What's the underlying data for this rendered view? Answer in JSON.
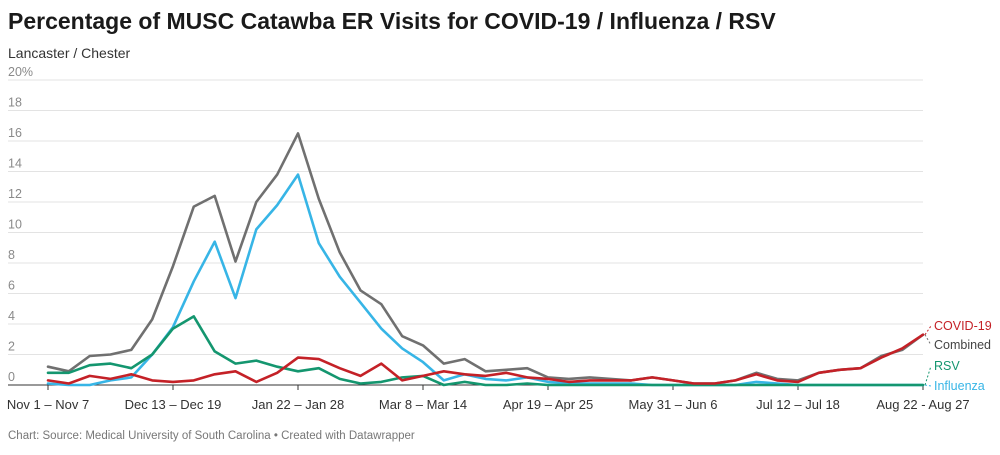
{
  "header": {
    "title": "Percentage of MUSC Catawba ER Visits for COVID-19 / Influenza / RSV",
    "subtitle": "Lancaster / Chester"
  },
  "footer": {
    "text": "Chart: Source: Medical University of South Carolina • Created with Datawrapper"
  },
  "chart_data": {
    "type": "line",
    "title": "Percentage of MUSC Catawba ER Visits for COVID-19 / Influenza / RSV",
    "subtitle": "Lancaster / Chester",
    "xlabel": "",
    "ylabel": "",
    "ylim": [
      0,
      20
    ],
    "yticks": [
      "0",
      "2",
      "4",
      "6",
      "8",
      "10",
      "12",
      "14",
      "16",
      "18",
      "20%"
    ],
    "x_tick_labels": [
      {
        "index": 0,
        "label": "Nov 1 – Nov 7"
      },
      {
        "index": 6,
        "label": "Dec 13 – Dec 19"
      },
      {
        "index": 12,
        "label": "Jan 22 – Jan 28"
      },
      {
        "index": 18,
        "label": "Mar 8 – Mar 14"
      },
      {
        "index": 24,
        "label": "Apr 19 – Apr 25"
      },
      {
        "index": 30,
        "label": "May 31 – Jun 6"
      },
      {
        "index": 36,
        "label": "Jul 12 – Jul 18"
      },
      {
        "index": 42,
        "label": "Aug 22 - Aug 27"
      }
    ],
    "n_points": 43,
    "grid": "horizontal",
    "legend": "inline labels at right end",
    "series": [
      {
        "name": "Combined",
        "color": "#707070",
        "values": [
          1.2,
          0.9,
          1.9,
          2.0,
          2.3,
          4.3,
          7.8,
          11.7,
          12.4,
          8.1,
          12.0,
          13.8,
          16.5,
          12.2,
          8.7,
          6.2,
          5.3,
          3.2,
          2.6,
          1.4,
          1.7,
          0.9,
          1.0,
          1.1,
          0.5,
          0.4,
          0.5,
          0.4,
          0.3,
          0.5,
          0.3,
          0.1,
          0.1,
          0.3,
          0.8,
          0.4,
          0.3,
          0.8,
          1.0,
          1.1,
          1.9,
          2.3,
          3.3
        ]
      },
      {
        "name": "Influenza",
        "color": "#37b5e6",
        "values": [
          0.1,
          0.0,
          0.0,
          0.3,
          0.5,
          2.0,
          3.8,
          6.8,
          9.4,
          5.7,
          10.2,
          11.8,
          13.8,
          9.3,
          7.1,
          5.4,
          3.7,
          2.4,
          1.5,
          0.3,
          0.7,
          0.4,
          0.3,
          0.5,
          0.2,
          0.1,
          0.1,
          0.1,
          0.1,
          0.0,
          0.0,
          0.0,
          0.0,
          0.0,
          0.2,
          0.1,
          0.0,
          0.0,
          0.0,
          0.0,
          0.0,
          0.0,
          0.0
        ]
      },
      {
        "name": "RSV",
        "color": "#14966f",
        "values": [
          0.8,
          0.8,
          1.3,
          1.4,
          1.1,
          2.0,
          3.7,
          4.5,
          2.2,
          1.4,
          1.6,
          1.2,
          0.9,
          1.1,
          0.4,
          0.1,
          0.2,
          0.5,
          0.6,
          0.0,
          0.2,
          0.0,
          0.0,
          0.1,
          0.0,
          0.0,
          0.0,
          0.0,
          0.0,
          0.0,
          0.0,
          0.0,
          0.0,
          0.0,
          0.0,
          0.0,
          0.0,
          0.0,
          0.0,
          0.0,
          0.0,
          0.0,
          0.0
        ]
      },
      {
        "name": "COVID-19",
        "color": "#c42127",
        "values": [
          0.3,
          0.1,
          0.6,
          0.4,
          0.7,
          0.3,
          0.2,
          0.3,
          0.7,
          0.9,
          0.2,
          0.8,
          1.8,
          1.7,
          1.1,
          0.6,
          1.4,
          0.3,
          0.6,
          0.9,
          0.7,
          0.6,
          0.8,
          0.5,
          0.4,
          0.2,
          0.3,
          0.3,
          0.3,
          0.5,
          0.3,
          0.1,
          0.1,
          0.3,
          0.7,
          0.3,
          0.2,
          0.8,
          1.0,
          1.1,
          1.8,
          2.4,
          3.3
        ]
      }
    ]
  }
}
